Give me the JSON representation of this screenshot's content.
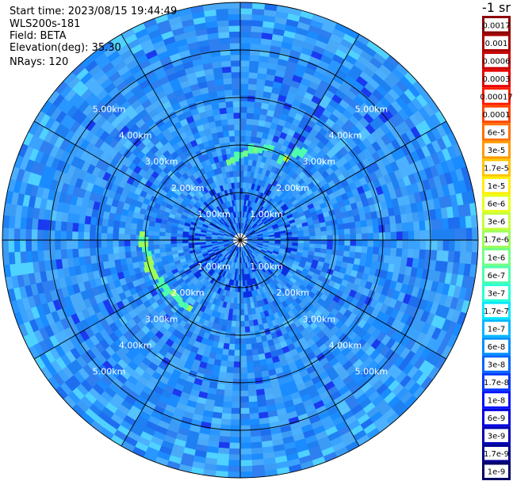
{
  "header": {
    "start_time": "Start time: 2023/08/15 19:44:49",
    "instrument": "WLS200s-181",
    "field": "Field: BETA",
    "elevation": "Elevation(deg): 35.30",
    "nrays": "NRays: 120"
  },
  "chart_data": {
    "type": "heatmap",
    "projection": "polar-ppi",
    "field": "BETA",
    "elevation_deg": 35.3,
    "n_rays": 120,
    "range_rings_km": [
      1,
      2,
      3,
      4,
      5
    ],
    "range_max_km": 5,
    "ring_labels": [
      "1.00km",
      "2.00km",
      "3.00km",
      "4.00km",
      "5.00km"
    ],
    "radial_lines_deg": [
      0,
      30,
      60,
      90,
      120,
      150,
      180,
      210,
      240,
      270,
      300,
      330
    ],
    "background_level": "1.7e-7 to 6e-7",
    "features": [
      {
        "name": "arc-west",
        "range_km": [
          1.7,
          2.0
        ],
        "azimuth_deg": [
          215,
          275
        ],
        "level": "1.7e-6"
      },
      {
        "name": "arc-north",
        "range_km": [
          1.6,
          2.0
        ],
        "azimuth_deg": [
          350,
          20
        ],
        "level": "1e-6"
      },
      {
        "name": "spot-northeast",
        "range_km": [
          1.8,
          2.2
        ],
        "azimuth_deg": [
          25,
          35
        ],
        "level": "3e-6"
      }
    ],
    "colorbar": {
      "unit_label": "-1 sr",
      "labels": [
        "0.0017",
        "0.001",
        "0.0006",
        "0.0003",
        "0.00017",
        "0.0001",
        "6e-5",
        "3e-5",
        "1.7e-5",
        "1e-5",
        "6e-6",
        "3e-6",
        "1.7e-6",
        "1e-6",
        "6e-7",
        "3e-7",
        "1.7e-7",
        "1e-7",
        "6e-8",
        "3e-8",
        "1.7e-8",
        "1e-8",
        "6e-9",
        "3e-9",
        "1.7e-9",
        "1e-9"
      ],
      "colors": [
        "#8b0000",
        "#a80000",
        "#c80000",
        "#e60000",
        "#ff1a00",
        "#ff4500",
        "#ff7000",
        "#ff9a00",
        "#ffc400",
        "#ffee00",
        "#e6ff1a",
        "#c4ff3a",
        "#9cff5c",
        "#74ff84",
        "#4dffac",
        "#26ffd6",
        "#00e8ff",
        "#00b8ff",
        "#0090ff",
        "#0064ff",
        "#0036ff",
        "#0010ff",
        "#0000e0",
        "#0000b8",
        "#00008f",
        "#000066"
      ]
    }
  }
}
